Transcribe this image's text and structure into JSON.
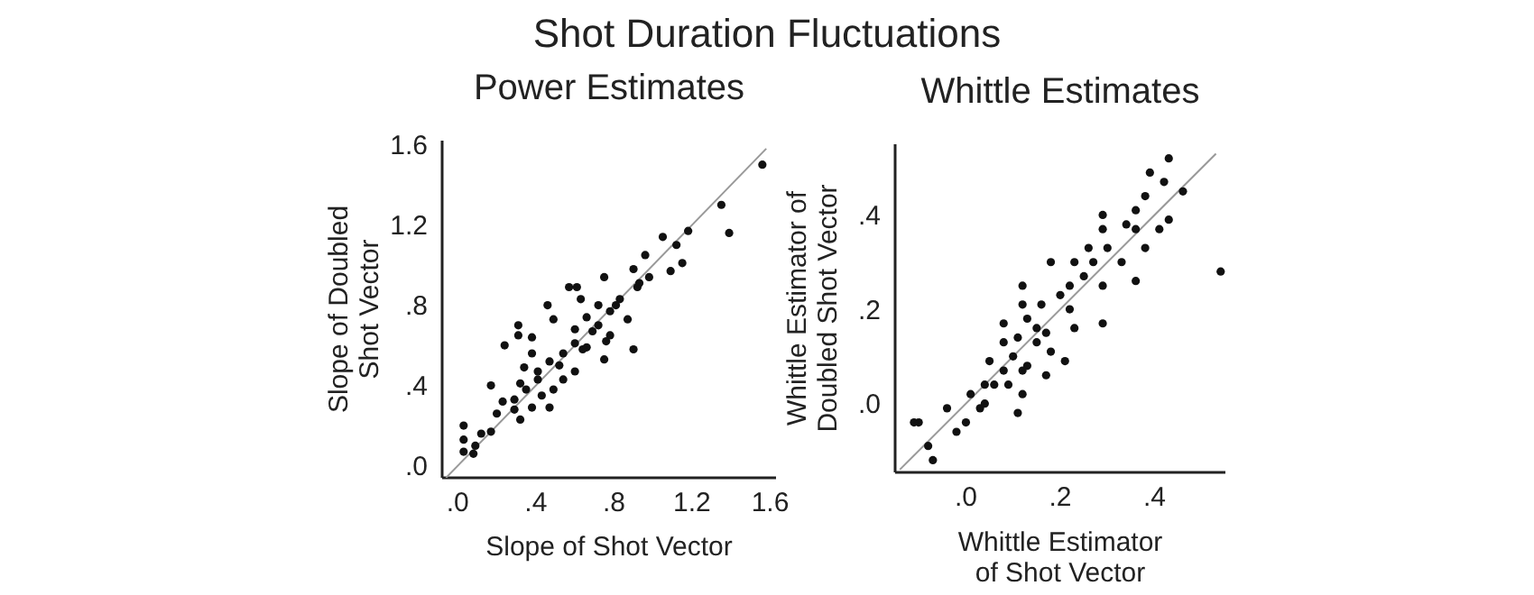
{
  "chart_data": [
    {
      "type": "other",
      "title": "Shot Duration Fluctuations"
    },
    {
      "type": "scatter",
      "title": "Power Estimates",
      "xlabel": "Slope of Shot Vector",
      "ylabel": "Slope of Doubled\nShot Vector",
      "xlim": [
        -0.08,
        1.63
      ],
      "ylim": [
        -0.06,
        1.62
      ],
      "xticks": [
        {
          "value": 0,
          "label": ".0"
        },
        {
          "value": 0.4,
          "label": ".4"
        },
        {
          "value": 0.8,
          "label": ".8"
        },
        1.2,
        1.6
      ],
      "yticks": [
        {
          "value": 0,
          "label": ".0"
        },
        {
          "value": 0.4,
          "label": ".4"
        },
        {
          "value": 0.8,
          "label": ".8"
        },
        1.2,
        1.6
      ],
      "series": [
        {
          "type": "line",
          "marker": "none",
          "color": "#999999",
          "x": [
            -0.06,
            1.58
          ],
          "values": [
            -0.06,
            1.58
          ]
        },
        {
          "type": "scatter",
          "marker": "circle",
          "color": "#111111",
          "x": [
            1.56,
            1.35,
            1.39,
            1.18,
            1.12,
            1.05,
            1.09,
            0.96,
            0.92,
            0.9,
            0.75,
            0.9,
            0.83,
            0.87,
            0.78,
            0.72,
            0.66,
            0.61,
            0.57,
            0.63,
            0.46,
            0.49,
            0.6,
            0.69,
            0.78,
            0.76,
            0.66,
            0.6,
            0.54,
            0.47,
            0.41,
            0.31,
            0.31,
            0.24,
            0.38,
            0.38,
            0.34,
            0.32,
            0.35,
            0.43,
            0.49,
            0.54,
            0.6,
            0.29,
            0.23,
            0.17,
            0.2,
            0.29,
            0.32,
            0.38,
            0.47,
            0.17,
            0.12,
            0.09,
            0.03,
            0.03,
            0.03,
            0.08,
            1.15,
            0.98,
            0.75,
            0.41,
            0.52,
            0.64,
            0.72,
            0.81,
            0.93
          ],
          "values": [
            1.5,
            1.3,
            1.16,
            1.17,
            1.1,
            1.14,
            0.97,
            1.05,
            0.89,
            0.98,
            0.94,
            0.58,
            0.83,
            0.73,
            0.77,
            0.8,
            0.74,
            0.89,
            0.89,
            0.83,
            0.8,
            0.73,
            0.68,
            0.67,
            0.65,
            0.62,
            0.59,
            0.61,
            0.56,
            0.52,
            0.47,
            0.7,
            0.65,
            0.6,
            0.64,
            0.56,
            0.49,
            0.41,
            0.38,
            0.35,
            0.38,
            0.43,
            0.47,
            0.33,
            0.32,
            0.4,
            0.26,
            0.28,
            0.23,
            0.29,
            0.29,
            0.17,
            0.16,
            0.1,
            0.2,
            0.13,
            0.07,
            0.06,
            1.01,
            0.94,
            0.53,
            0.43,
            0.5,
            0.58,
            0.7,
            0.8,
            0.91
          ]
        }
      ]
    },
    {
      "type": "scatter",
      "title": "Whittle Estimates",
      "xlabel": "Whittle Estimator\nof Shot Vector",
      "ylabel": "Whittle Estimator of\nDoubled Shot Vector",
      "xlim": [
        -0.15,
        0.55
      ],
      "ylim": [
        -0.146,
        0.55
      ],
      "xticks": [
        {
          "value": 0,
          "label": ".0"
        },
        {
          "value": 0.2,
          "label": ".2"
        },
        {
          "value": 0.4,
          "label": ".4"
        }
      ],
      "yticks": [
        {
          "value": 0,
          "label": ".0"
        },
        {
          "value": 0.2,
          "label": ".2"
        },
        {
          "value": 0.4,
          "label": ".4"
        }
      ],
      "series": [
        {
          "type": "line",
          "marker": "none",
          "color": "#999999",
          "x": [
            -0.14,
            0.53
          ],
          "values": [
            -0.14,
            0.53
          ]
        },
        {
          "type": "scatter",
          "marker": "circle",
          "color": "#111111",
          "x": [
            0.43,
            0.39,
            0.42,
            0.46,
            0.38,
            0.54,
            0.29,
            0.34,
            0.36,
            0.36,
            0.41,
            0.43,
            0.38,
            0.36,
            0.33,
            0.3,
            0.26,
            0.23,
            0.25,
            0.29,
            0.22,
            0.18,
            0.12,
            0.16,
            0.12,
            0.13,
            0.08,
            0.2,
            0.22,
            0.23,
            0.29,
            0.17,
            0.15,
            0.11,
            0.08,
            0.05,
            0.1,
            0.13,
            0.17,
            0.21,
            0.18,
            0.09,
            0.08,
            0.12,
            0.11,
            0.04,
            0.01,
            0.03,
            0.04,
            0,
            -0.02,
            -0.04,
            -0.1,
            -0.11,
            -0.08,
            -0.07,
            0.29,
            0.27,
            0.15,
            0.12,
            0.06
          ],
          "values": [
            0.52,
            0.49,
            0.47,
            0.45,
            0.44,
            0.28,
            0.4,
            0.38,
            0.41,
            0.37,
            0.37,
            0.39,
            0.33,
            0.26,
            0.3,
            0.33,
            0.33,
            0.3,
            0.27,
            0.25,
            0.25,
            0.3,
            0.25,
            0.21,
            0.21,
            0.18,
            0.17,
            0.23,
            0.2,
            0.16,
            0.17,
            0.15,
            0.13,
            0.14,
            0.13,
            0.09,
            0.1,
            0.08,
            0.06,
            0.09,
            0.11,
            0.04,
            0.07,
            0.02,
            -0.02,
            0.04,
            0.02,
            -0.01,
            0,
            -0.04,
            -0.06,
            -0.01,
            -0.04,
            -0.04,
            -0.09,
            -0.12,
            0.37,
            0.3,
            0.16,
            0.07,
            0.04
          ]
        }
      ]
    }
  ]
}
